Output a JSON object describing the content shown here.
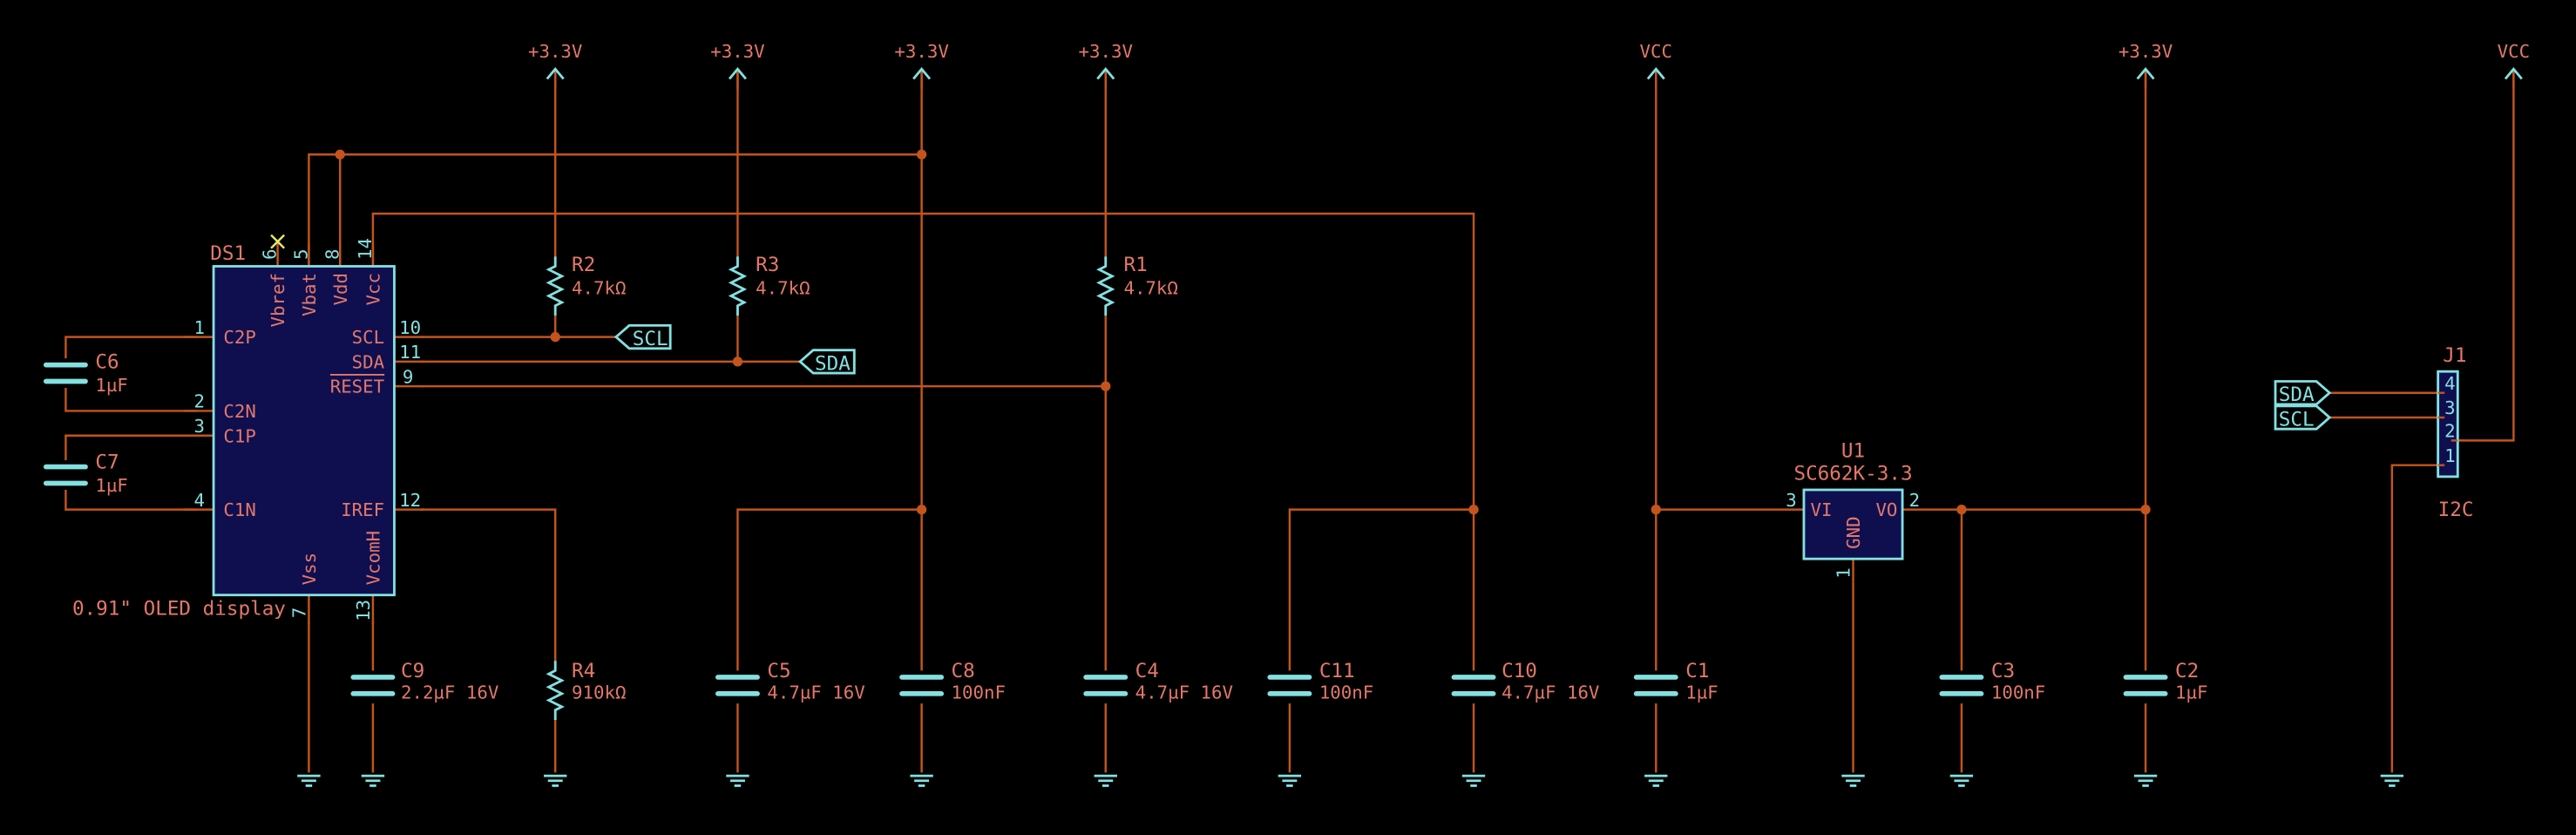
{
  "colors": {
    "background": "#000000",
    "wire": "#c4541c",
    "symbol": "#84e0e0",
    "text": "#e37869",
    "ic_fill": "#0f0f50"
  },
  "power_labels": {
    "p33": "+3.3V",
    "vcc": "VCC"
  },
  "ds1": {
    "ref": "DS1",
    "value": "0.91\" OLED display",
    "pins": {
      "vbref": {
        "name": "Vbref",
        "num": "6"
      },
      "vbat": {
        "name": "Vbat",
        "num": "5"
      },
      "vdd": {
        "name": "Vdd",
        "num": "8"
      },
      "vcc": {
        "name": "Vcc",
        "num": "14"
      },
      "c2p": {
        "name": "C2P",
        "num": "1"
      },
      "c2n": {
        "name": "C2N",
        "num": "2"
      },
      "c1p": {
        "name": "C1P",
        "num": "3"
      },
      "c1n": {
        "name": "C1N",
        "num": "4"
      },
      "scl": {
        "name": "SCL",
        "num": "10"
      },
      "sda": {
        "name": "SDA",
        "num": "11"
      },
      "reset": {
        "name": "RESET",
        "num": "9"
      },
      "iref": {
        "name": "IREF",
        "num": "12"
      },
      "vss": {
        "name": "Vss",
        "num": "7"
      },
      "vcomh": {
        "name": "VcomH",
        "num": "13"
      }
    }
  },
  "resistors": {
    "r1": {
      "ref": "R1",
      "value": "4.7kΩ"
    },
    "r2": {
      "ref": "R2",
      "value": "4.7kΩ"
    },
    "r3": {
      "ref": "R3",
      "value": "4.7kΩ"
    },
    "r4": {
      "ref": "R4",
      "value": "910kΩ"
    }
  },
  "capacitors": {
    "c1": {
      "ref": "C1",
      "value": "1µF"
    },
    "c2": {
      "ref": "C2",
      "value": "1µF"
    },
    "c3": {
      "ref": "C3",
      "value": "100nF"
    },
    "c4": {
      "ref": "C4",
      "value": "4.7µF 16V"
    },
    "c5": {
      "ref": "C5",
      "value": "4.7µF 16V"
    },
    "c6": {
      "ref": "C6",
      "value": "1µF"
    },
    "c7": {
      "ref": "C7",
      "value": "1µF"
    },
    "c8": {
      "ref": "C8",
      "value": "100nF"
    },
    "c9": {
      "ref": "C9",
      "value": "2.2µF 16V"
    },
    "c10": {
      "ref": "C10",
      "value": "4.7µF 16V"
    },
    "c11": {
      "ref": "C11",
      "value": "100nF"
    }
  },
  "u1": {
    "ref": "U1",
    "value": "SC662K-3.3",
    "pins": {
      "vi": {
        "name": "VI",
        "num": "3"
      },
      "vo": {
        "name": "VO",
        "num": "2"
      },
      "gnd": {
        "name": "GND",
        "num": "1"
      }
    }
  },
  "j1": {
    "ref": "J1",
    "value": "I2C",
    "pins": [
      "4",
      "3",
      "2",
      "1"
    ]
  },
  "net_labels": {
    "scl": "SCL",
    "sda": "SDA"
  }
}
